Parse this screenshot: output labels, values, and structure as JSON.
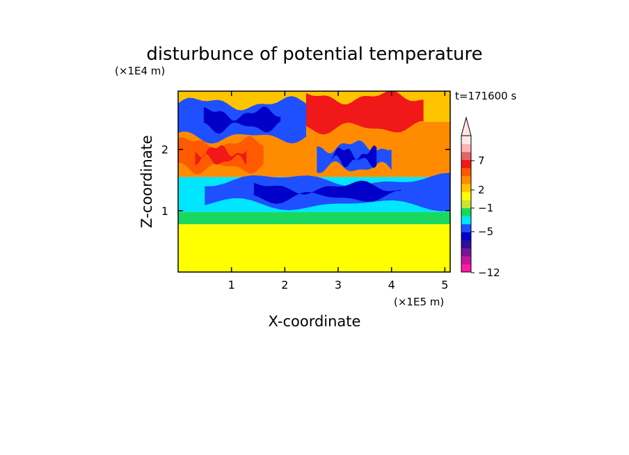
{
  "chart_data": {
    "type": "heatmap",
    "title": "disturbunce of potential temperature",
    "xlabel": "X-coordinate",
    "ylabel": "Z-coordinate",
    "x_unit": "(×1E5 m)",
    "y_unit": "(×1E4 m)",
    "time_label": "t=171600 s",
    "xlim": [
      0,
      5.1
    ],
    "ylim": [
      0,
      2.95
    ],
    "x_ticks": [
      1,
      2,
      3,
      4,
      5
    ],
    "x_tick_labels": [
      "1",
      "2",
      "3",
      "4",
      "5"
    ],
    "y_ticks": [
      1,
      2
    ],
    "y_tick_labels": [
      "1",
      "2"
    ],
    "colorbar": {
      "labels": [
        "7",
        "2",
        "−1",
        "−5",
        "−12"
      ],
      "colors": [
        "#ff1aa5",
        "#c0189a",
        "#7a1496",
        "#2a10a0",
        "#0000c8",
        "#1e50ff",
        "#00e6ff",
        "#18d860",
        "#c8e632",
        "#ffff00",
        "#ffc400",
        "#ff8c00",
        "#ff5a00",
        "#f01818",
        "#e66464",
        "#ffb4b4",
        "#ffe6e6"
      ]
    },
    "layers": [
      {
        "band": "base",
        "zmin": 0.0,
        "zmax": 0.78,
        "value": "0 to 2",
        "color": "#ffff00"
      },
      {
        "band": "low",
        "zmin": 0.78,
        "zmax": 0.98,
        "value": "-1 to 0",
        "color": "#18d860"
      },
      {
        "band": "mid",
        "zmin": 0.98,
        "zmax": 1.55,
        "value": "-2 to -1",
        "color": "#00e6ff"
      },
      {
        "band": "upper",
        "zmin": 1.55,
        "zmax": 2.45,
        "value": "2 to 7",
        "color": "#ff8c00"
      },
      {
        "band": "top",
        "zmin": 2.45,
        "zmax": 2.95,
        "value": "-5 to 7",
        "color": "#ffc400"
      }
    ],
    "features": [
      {
        "kind": "cold",
        "x": [
          0.0,
          2.4
        ],
        "z": [
          2.2,
          2.75
        ],
        "value": -5
      },
      {
        "kind": "warm",
        "x": [
          2.4,
          4.6
        ],
        "z": [
          2.35,
          2.85
        ],
        "value": 7
      },
      {
        "kind": "cold",
        "x": [
          2.6,
          4.0
        ],
        "z": [
          1.7,
          2.05
        ],
        "value": -5
      },
      {
        "kind": "cold",
        "x": [
          0.5,
          5.1
        ],
        "z": [
          1.1,
          1.5
        ],
        "value": -5
      },
      {
        "kind": "warm",
        "x": [
          0.0,
          1.6
        ],
        "z": [
          1.7,
          2.1
        ],
        "value": 5
      }
    ]
  }
}
